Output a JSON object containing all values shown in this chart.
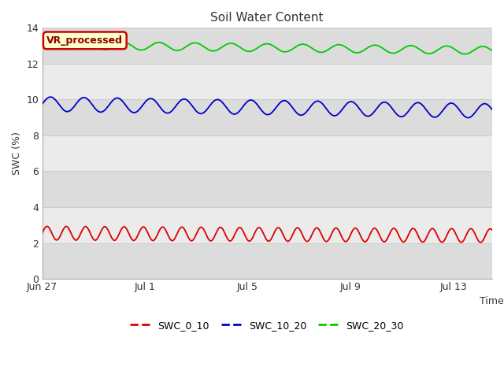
{
  "title": "Soil Water Content",
  "ylabel": "SWC (%)",
  "xlabel": "Time",
  "ylim": [
    0,
    14
  ],
  "figure_bg": "#ffffff",
  "plot_bg": "#ffffff",
  "annotation_text": "VR_processed",
  "annotation_bg": "#ffffcc",
  "annotation_border": "#cc0000",
  "annotation_text_color": "#8b0000",
  "series": [
    {
      "label": "SWC_0_10",
      "color": "#dd0000",
      "mean": 2.55,
      "amplitude": 0.38,
      "freq_days": 0.75,
      "trend": -0.008
    },
    {
      "label": "SWC_10_20",
      "color": "#0000cc",
      "mean": 9.75,
      "amplitude": 0.4,
      "freq_days": 1.3,
      "trend": -0.022
    },
    {
      "label": "SWC_20_30",
      "color": "#00cc00",
      "mean": 13.05,
      "amplitude": 0.22,
      "freq_days": 1.4,
      "trend": -0.018
    }
  ],
  "xtick_labels": [
    "Jun 27",
    "Jul 1",
    "Jul 5",
    "Jul 9",
    "Jul 13"
  ],
  "xtick_days_from_start": [
    0,
    4,
    8,
    12,
    16
  ],
  "yticks": [
    0,
    2,
    4,
    6,
    8,
    10,
    12,
    14
  ],
  "grid_color": "#cccccc",
  "band_colors_dark": "#dcdcdc",
  "band_colors_light": "#ebebeb",
  "n_points": 1000,
  "total_days": 17.5
}
